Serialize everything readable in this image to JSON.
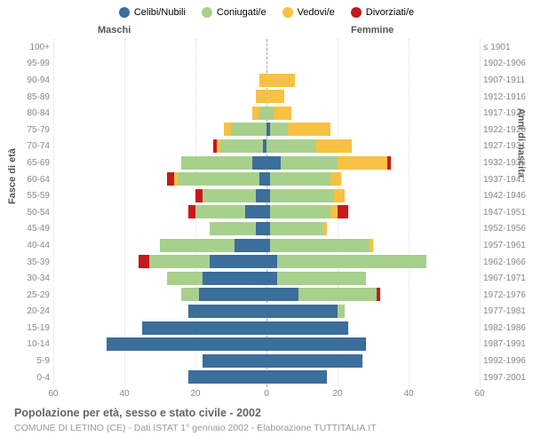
{
  "chart": {
    "type": "population-pyramid",
    "title": "Popolazione per età, sesso e stato civile - 2002",
    "subtitle": "COMUNE DI LETINO (CE) - Dati ISTAT 1° gennaio 2002 - Elaborazione TUTTITALIA.IT",
    "header_male": "Maschi",
    "header_female": "Femmine",
    "ylabel_left": "Fasce di età",
    "ylabel_right": "Anni di nascita",
    "x_max": 60,
    "x_ticks": [
      60,
      40,
      20,
      0,
      20,
      40,
      60
    ],
    "legend": [
      {
        "label": "Celibi/Nubili",
        "color": "#3b6e9b"
      },
      {
        "label": "Coniugati/e",
        "color": "#a8d08d"
      },
      {
        "label": "Vedovi/e",
        "color": "#f7c143"
      },
      {
        "label": "Divorziati/e",
        "color": "#c51a1a"
      }
    ],
    "colors": {
      "celibi": "#3b6e9b",
      "coniugati": "#a8d08d",
      "vedovi": "#f7c143",
      "divorziati": "#c51a1a",
      "grid": "#dddddd",
      "center": "#aaaaaa",
      "text": "#888888",
      "background": "#ffffff"
    },
    "rows": [
      {
        "age": "100+",
        "year": "≤ 1901",
        "m": [
          0,
          0,
          0,
          0
        ],
        "f": [
          0,
          0,
          0,
          0
        ]
      },
      {
        "age": "95-99",
        "year": "1902-1906",
        "m": [
          0,
          0,
          0,
          0
        ],
        "f": [
          0,
          0,
          0,
          0
        ]
      },
      {
        "age": "90-94",
        "year": "1907-1911",
        "m": [
          0,
          0,
          2,
          0
        ],
        "f": [
          0,
          0,
          8,
          0
        ]
      },
      {
        "age": "85-89",
        "year": "1912-1916",
        "m": [
          0,
          0,
          3,
          0
        ],
        "f": [
          0,
          0,
          5,
          0
        ]
      },
      {
        "age": "80-84",
        "year": "1917-1921",
        "m": [
          0,
          2,
          2,
          0
        ],
        "f": [
          0,
          2,
          5,
          0
        ]
      },
      {
        "age": "75-79",
        "year": "1922-1926",
        "m": [
          0,
          10,
          2,
          0
        ],
        "f": [
          1,
          5,
          12,
          0
        ]
      },
      {
        "age": "70-74",
        "year": "1927-1931",
        "m": [
          1,
          12,
          1,
          1
        ],
        "f": [
          0,
          14,
          10,
          0
        ]
      },
      {
        "age": "65-69",
        "year": "1932-1936",
        "m": [
          4,
          20,
          0,
          0
        ],
        "f": [
          4,
          16,
          14,
          1
        ]
      },
      {
        "age": "60-64",
        "year": "1937-1941",
        "m": [
          2,
          23,
          1,
          2
        ],
        "f": [
          1,
          17,
          3,
          0
        ]
      },
      {
        "age": "55-59",
        "year": "1942-1946",
        "m": [
          3,
          15,
          0,
          2
        ],
        "f": [
          1,
          18,
          3,
          0
        ]
      },
      {
        "age": "50-54",
        "year": "1947-1951",
        "m": [
          6,
          14,
          0,
          2
        ],
        "f": [
          1,
          17,
          2,
          3
        ]
      },
      {
        "age": "45-49",
        "year": "1952-1956",
        "m": [
          3,
          13,
          0,
          0
        ],
        "f": [
          1,
          15,
          1,
          0
        ]
      },
      {
        "age": "40-44",
        "year": "1957-1961",
        "m": [
          9,
          21,
          0,
          0
        ],
        "f": [
          1,
          28,
          1,
          0
        ]
      },
      {
        "age": "35-39",
        "year": "1962-1966",
        "m": [
          16,
          17,
          0,
          3
        ],
        "f": [
          3,
          42,
          0,
          0
        ]
      },
      {
        "age": "30-34",
        "year": "1967-1971",
        "m": [
          18,
          10,
          0,
          0
        ],
        "f": [
          3,
          25,
          0,
          0
        ]
      },
      {
        "age": "25-29",
        "year": "1972-1976",
        "m": [
          19,
          5,
          0,
          0
        ],
        "f": [
          9,
          22,
          0,
          1
        ]
      },
      {
        "age": "20-24",
        "year": "1977-1981",
        "m": [
          22,
          0,
          0,
          0
        ],
        "f": [
          20,
          2,
          0,
          0
        ]
      },
      {
        "age": "15-19",
        "year": "1982-1986",
        "m": [
          35,
          0,
          0,
          0
        ],
        "f": [
          23,
          0,
          0,
          0
        ]
      },
      {
        "age": "10-14",
        "year": "1987-1991",
        "m": [
          45,
          0,
          0,
          0
        ],
        "f": [
          28,
          0,
          0,
          0
        ]
      },
      {
        "age": "5-9",
        "year": "1992-1996",
        "m": [
          18,
          0,
          0,
          0
        ],
        "f": [
          27,
          0,
          0,
          0
        ]
      },
      {
        "age": "0-4",
        "year": "1997-2001",
        "m": [
          22,
          0,
          0,
          0
        ],
        "f": [
          17,
          0,
          0,
          0
        ]
      }
    ]
  }
}
